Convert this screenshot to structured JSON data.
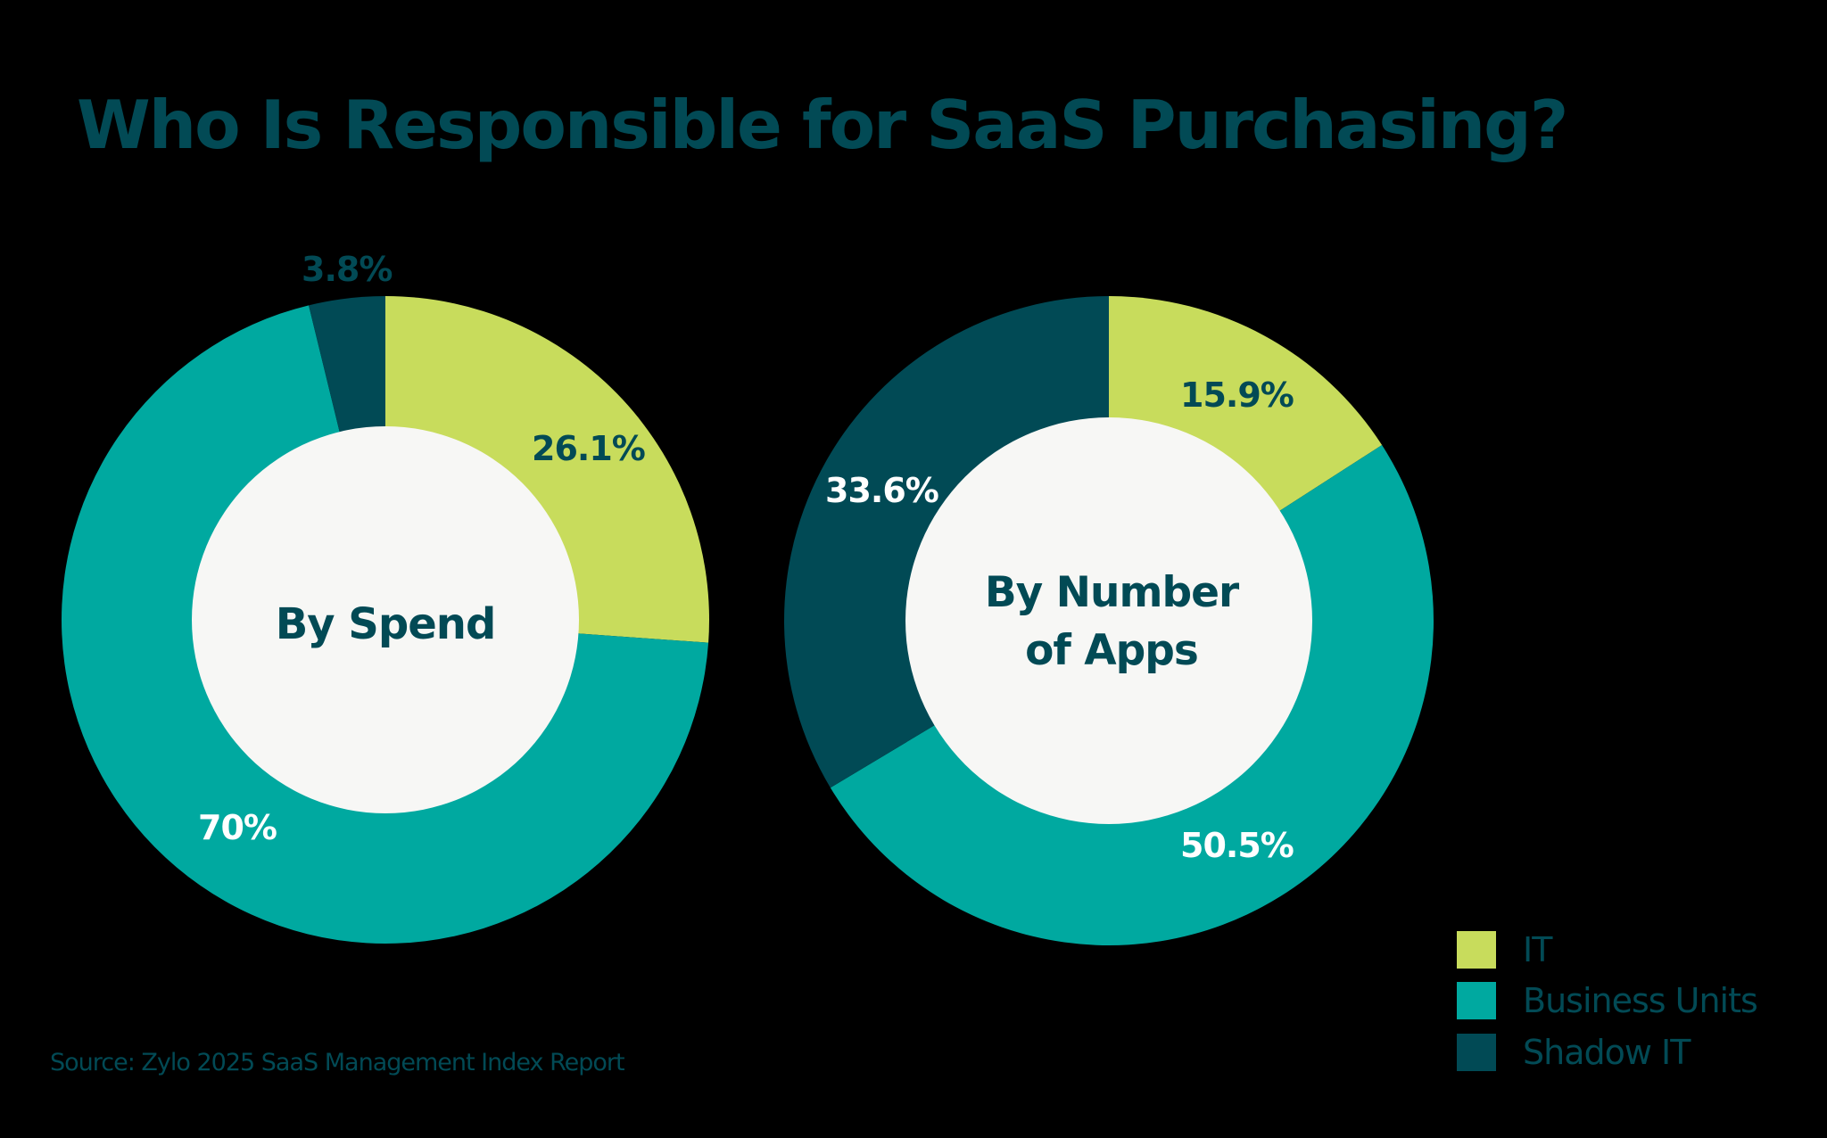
{
  "title": "Who Is Responsible for SaaS Purchasing?",
  "colors": {
    "it": "#c8dc5c",
    "business_units": "#00a9a0",
    "shadow_it": "#014a55",
    "text_dark": "#024a55",
    "text_light": "#ffffff",
    "inner": "#f7f7f5",
    "background": "#000000"
  },
  "charts": [
    {
      "center_label_lines": [
        "By Spend"
      ],
      "slices": [
        {
          "label": "26.1%",
          "value": 26.1,
          "category": "IT"
        },
        {
          "label": "70%",
          "value": 70.0,
          "category": "Business Units"
        },
        {
          "label": "3.8%",
          "value": 3.8,
          "category": "Shadow IT"
        }
      ]
    },
    {
      "center_label_lines": [
        "By Number",
        "of Apps"
      ],
      "slices": [
        {
          "label": "15.9%",
          "value": 15.9,
          "category": "IT"
        },
        {
          "label": "50.5%",
          "value": 50.5,
          "category": "Business Units"
        },
        {
          "label": "33.6%",
          "value": 33.6,
          "category": "Shadow IT"
        }
      ]
    }
  ],
  "legend": [
    {
      "label": "IT"
    },
    {
      "label": "Business Units"
    },
    {
      "label": "Shadow IT"
    }
  ],
  "source": "Source: Zylo 2025 SaaS Management Index Report",
  "chart_data": [
    {
      "type": "pie",
      "title": "By Spend",
      "categories": [
        "IT",
        "Business Units",
        "Shadow IT"
      ],
      "values": [
        26.1,
        70.0,
        3.8
      ],
      "unit": "%",
      "donut": true,
      "legend_position": "bottom-right"
    },
    {
      "type": "pie",
      "title": "By Number of Apps",
      "categories": [
        "IT",
        "Business Units",
        "Shadow IT"
      ],
      "values": [
        15.9,
        50.5,
        33.6
      ],
      "unit": "%",
      "donut": true,
      "legend_position": "bottom-right"
    }
  ]
}
